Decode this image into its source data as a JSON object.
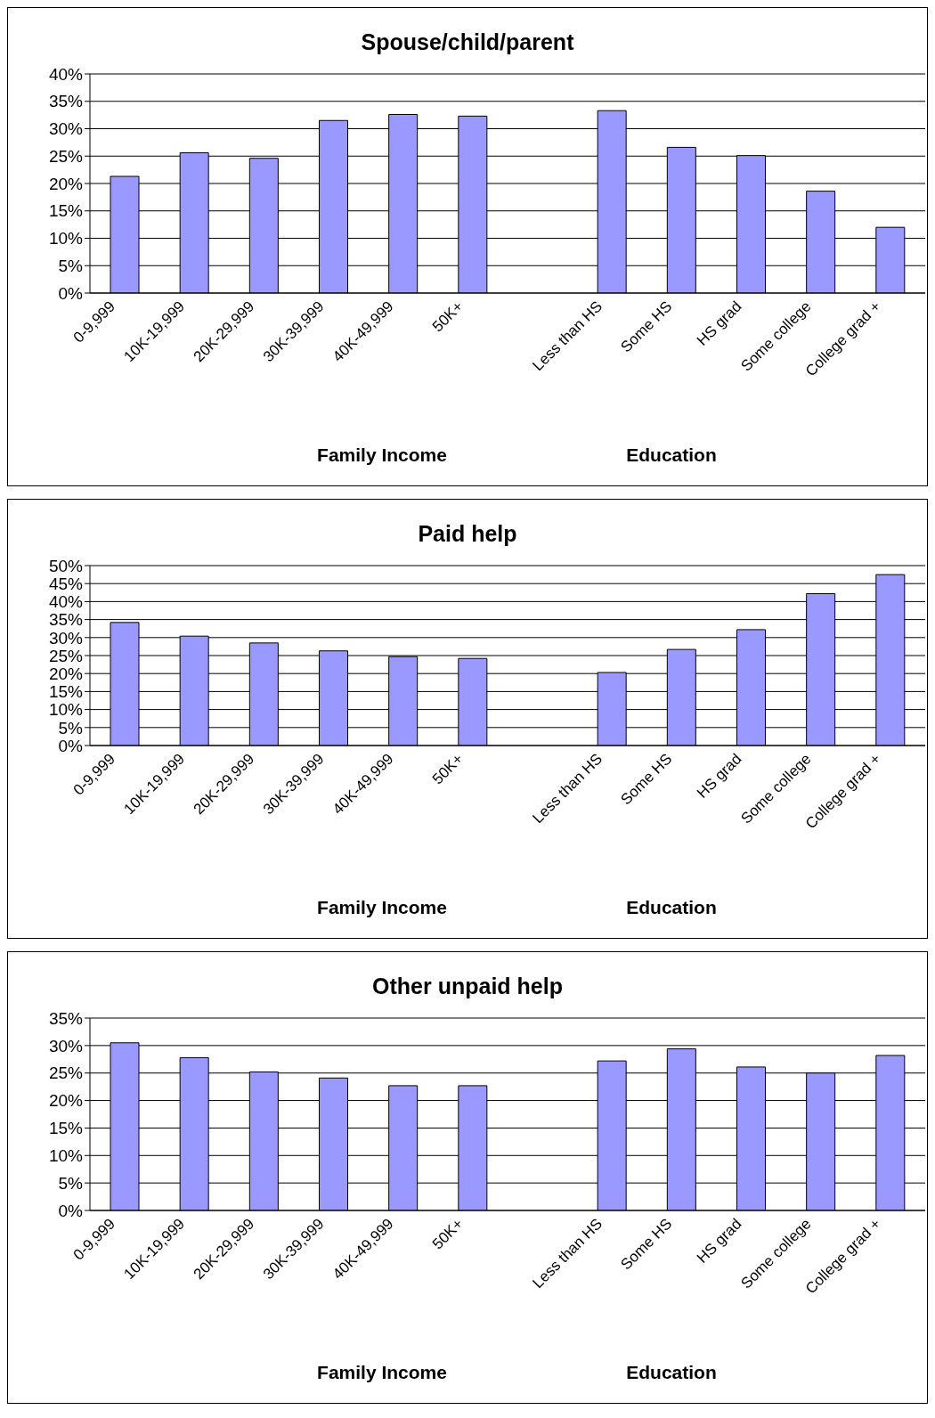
{
  "chart_data": [
    {
      "type": "bar",
      "title": "Spouse/child/parent",
      "xlabel": "Family Income",
      "annotations": [
        "Education"
      ],
      "categories": [
        "0-9,999",
        "10K-19,999",
        "20K-29,999",
        "30K-39,999",
        "40K-49,999",
        "50K+",
        null,
        "Less than HS",
        "Some HS",
        "HS grad",
        "Some college",
        "College grad +"
      ],
      "values": [
        21.3,
        25.6,
        24.6,
        31.5,
        32.6,
        32.3,
        null,
        33.3,
        26.6,
        25.1,
        18.6,
        12.0
      ],
      "color": "#9999ff",
      "ylim": [
        0,
        40
      ],
      "yticks": [
        {
          "value": 0,
          "label": "0%"
        },
        {
          "value": 5,
          "label": "5%"
        },
        {
          "value": 10,
          "label": "10%"
        },
        {
          "value": 15,
          "label": "15%"
        },
        {
          "value": 20,
          "label": "20%"
        },
        {
          "value": 25,
          "label": "25%"
        },
        {
          "value": 30,
          "label": "30%"
        },
        {
          "value": 35,
          "label": "35%"
        },
        {
          "value": 40,
          "label": "40%"
        }
      ],
      "grid": "y"
    },
    {
      "type": "bar",
      "title": "Paid help",
      "xlabel": "Family Income",
      "annotations": [
        "Education"
      ],
      "categories": [
        "0-9,999",
        "10K-19,999",
        "20K-29,999",
        "30K-39,999",
        "40K-49,999",
        "50K+",
        null,
        "Less than HS",
        "Some HS",
        "HS grad",
        "Some college",
        "College grad +"
      ],
      "values": [
        34.2,
        30.4,
        28.5,
        26.3,
        24.7,
        24.2,
        null,
        20.3,
        26.7,
        32.2,
        42.2,
        47.5
      ],
      "color": "#9999ff",
      "ylim": [
        0,
        50
      ],
      "yticks": [
        {
          "value": 0,
          "label": "0%"
        },
        {
          "value": 5,
          "label": "5%"
        },
        {
          "value": 10,
          "label": "10%"
        },
        {
          "value": 15,
          "label": "15%"
        },
        {
          "value": 20,
          "label": "20%"
        },
        {
          "value": 25,
          "label": "25%"
        },
        {
          "value": 30,
          "label": "30%"
        },
        {
          "value": 35,
          "label": "35%"
        },
        {
          "value": 40,
          "label": "40%"
        },
        {
          "value": 45,
          "label": "45%"
        },
        {
          "value": 50,
          "label": "50%"
        }
      ],
      "grid": "y"
    },
    {
      "type": "bar",
      "title": "Other unpaid help",
      "xlabel": "Family Income",
      "annotations": [
        "Education"
      ],
      "categories": [
        "0-9,999",
        "10K-19,999",
        "20K-29,999",
        "30K-39,999",
        "40K-49,999",
        "50K+",
        null,
        "Less than HS",
        "Some HS",
        "HS grad",
        "Some college",
        "College grad +"
      ],
      "values": [
        30.5,
        27.8,
        25.2,
        24.1,
        22.7,
        22.7,
        null,
        27.2,
        29.4,
        26.1,
        25.0,
        28.2
      ],
      "color": "#9999ff",
      "ylim": [
        0,
        35
      ],
      "yticks": [
        {
          "value": 0,
          "label": "0%"
        },
        {
          "value": 5,
          "label": "5%"
        },
        {
          "value": 10,
          "label": "10%"
        },
        {
          "value": 15,
          "label": "15%"
        },
        {
          "value": 20,
          "label": "20%"
        },
        {
          "value": 25,
          "label": "25%"
        },
        {
          "value": 30,
          "label": "30%"
        },
        {
          "value": 35,
          "label": "35%"
        }
      ],
      "grid": "y"
    }
  ]
}
